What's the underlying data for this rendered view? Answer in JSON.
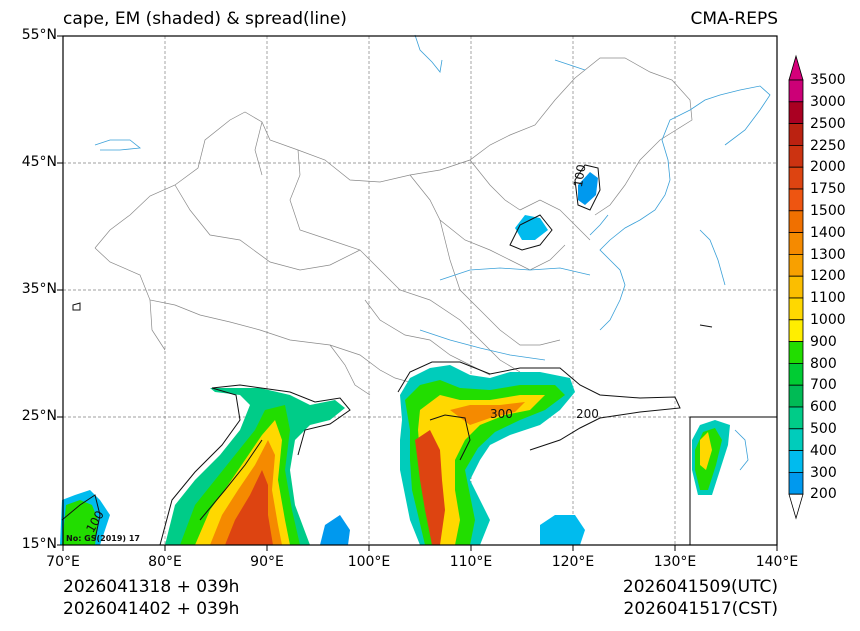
{
  "title_left": "cape, EM (shaded) & spread(line)",
  "title_right": "CMA-REPS",
  "lat_labels": [
    "55°N",
    "45°N",
    "35°N",
    "25°N",
    "15°N"
  ],
  "lon_labels": [
    "70°E",
    "80°E",
    "90°E",
    "100°E",
    "110°E",
    "120°E",
    "130°E",
    "140°E"
  ],
  "colorbar": {
    "levels": [
      "3500",
      "3000",
      "2500",
      "2250",
      "2000",
      "1750",
      "1500",
      "1400",
      "1300",
      "1200",
      "1100",
      "1000",
      "900",
      "800",
      "700",
      "600",
      "500",
      "400",
      "300",
      "200"
    ],
    "colors": [
      "#cc0077",
      "#aa0022",
      "#bb2211",
      "#cc3311",
      "#dd4411",
      "#ee5511",
      "#f07000",
      "#f58a00",
      "#f8a000",
      "#fbbe00",
      "#ffd800",
      "#ffee00",
      "#22dd00",
      "#00cc33",
      "#00bb55",
      "#00cc88",
      "#00ccbb",
      "#00bbee",
      "#0099ee"
    ]
  },
  "contour_labels": [
    "100",
    "300",
    "200",
    "100"
  ],
  "watermark": "No: GS(2019) 17",
  "footer": {
    "init_utc": "2026041318  +  039h",
    "init_cst": "2026041402  +  039h",
    "valid_utc": "2026041509(UTC)",
    "valid_cst": "2026041517(CST)"
  },
  "colors": {
    "frame": "#000000",
    "grid": "#808080",
    "coast": "#3aa0d8",
    "border": "#8a8a8a"
  }
}
